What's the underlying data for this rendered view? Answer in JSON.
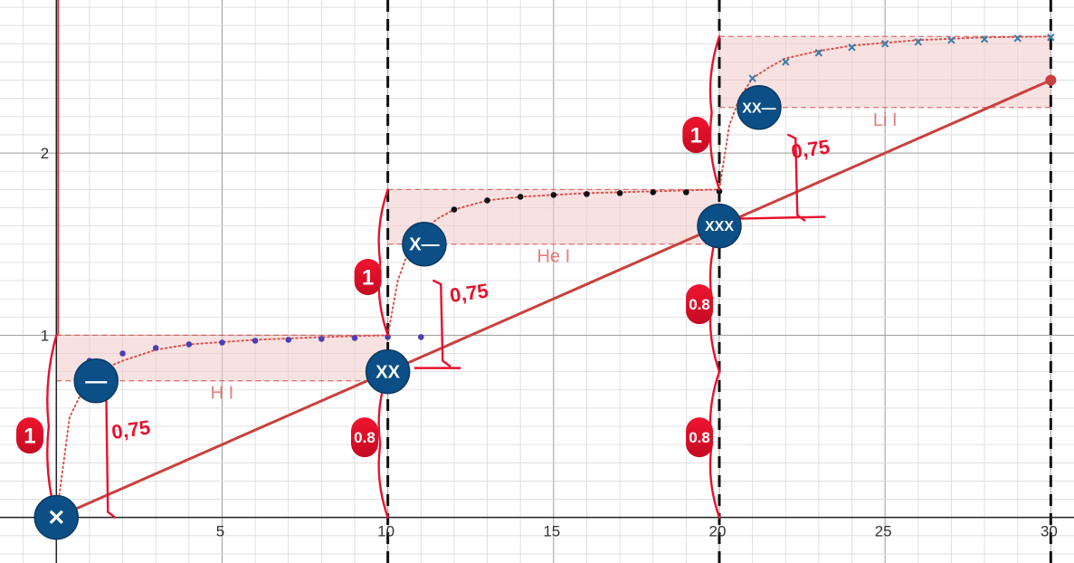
{
  "chart_data": {
    "type": "line",
    "xlim": [
      -1.7,
      30.7
    ],
    "ylim": [
      -0.25,
      2.84
    ],
    "grid": true,
    "x_ticks": [
      {
        "value": 0,
        "label": "0"
      },
      {
        "value": 5,
        "label": "5"
      },
      {
        "value": 10,
        "label": "10"
      },
      {
        "value": 15,
        "label": "15"
      },
      {
        "value": 20,
        "label": "20"
      },
      {
        "value": 25,
        "label": "25"
      },
      {
        "value": 30,
        "label": "30"
      }
    ],
    "y_ticks": [
      {
        "value": 1,
        "label": "1"
      },
      {
        "value": 2,
        "label": "2"
      }
    ],
    "dashed_vlines": [
      10,
      20,
      30
    ],
    "diagonal_line": {
      "x": [
        0,
        30
      ],
      "y": [
        0,
        2.4
      ],
      "color": "#c9403d"
    },
    "regions": [
      {
        "label": "H I",
        "x": [
          0,
          10
        ],
        "y_low": 0.75,
        "y_high": 1.0
      },
      {
        "label": "He I",
        "x": [
          10,
          20
        ],
        "y_low": 1.5,
        "y_high": 1.8
      },
      {
        "label": "Li I",
        "x": [
          20,
          30
        ],
        "y_low": 2.25,
        "y_high": 2.64
      }
    ],
    "series": [
      {
        "color": "#4a3fb5",
        "marker": "dot",
        "x": [
          1,
          2,
          3,
          4,
          5,
          6,
          7,
          8,
          9,
          10,
          11
        ],
        "y": [
          0.86,
          0.9,
          0.93,
          0.95,
          0.96,
          0.97,
          0.975,
          0.98,
          0.985,
          0.99,
          0.99
        ]
      },
      {
        "color": "#111111",
        "marker": "dot",
        "x": [
          11,
          12,
          13,
          14,
          15,
          16,
          17,
          18,
          19,
          20
        ],
        "y": [
          1.59,
          1.69,
          1.74,
          1.76,
          1.77,
          1.775,
          1.78,
          1.785,
          1.785,
          1.79
        ]
      },
      {
        "color": "#3a7ca5",
        "marker": "x",
        "x": [
          21,
          22,
          23,
          24,
          25,
          26,
          27,
          28,
          29,
          30
        ],
        "y": [
          2.41,
          2.5,
          2.55,
          2.58,
          2.6,
          2.61,
          2.62,
          2.625,
          2.63,
          2.635
        ]
      }
    ],
    "curves": [
      {
        "x": [
          0,
          0.4,
          0.8,
          1.2,
          1.6,
          2,
          3,
          4,
          6,
          8,
          10
        ],
        "y": [
          0,
          0.55,
          0.7,
          0.78,
          0.83,
          0.86,
          0.92,
          0.95,
          0.975,
          0.99,
          1.0
        ]
      },
      {
        "x": [
          10,
          10.3,
          10.6,
          11,
          11.5,
          12,
          13,
          14,
          16,
          18,
          20
        ],
        "y": [
          1.0,
          1.3,
          1.45,
          1.56,
          1.64,
          1.69,
          1.74,
          1.76,
          1.78,
          1.79,
          1.8
        ]
      },
      {
        "x": [
          20,
          20.3,
          20.6,
          21,
          21.5,
          22,
          23,
          24,
          26,
          28,
          30
        ],
        "y": [
          1.8,
          2.15,
          2.3,
          2.41,
          2.47,
          2.52,
          2.56,
          2.59,
          2.62,
          2.635,
          2.64
        ]
      }
    ],
    "endpoint": {
      "x": 30,
      "y": 2.4
    }
  },
  "annotations": {
    "circles": [
      {
        "text": "✕",
        "x": 0,
        "y": 0
      },
      {
        "text": "—",
        "x": 1.2,
        "y": 0.75
      },
      {
        "text": "XX",
        "x": 10,
        "y": 0.8
      },
      {
        "text": "X—",
        "x": 11.1,
        "y": 1.5
      },
      {
        "text": "XXX",
        "x": 20,
        "y": 1.6
      },
      {
        "text": "XX—",
        "x": 21.2,
        "y": 2.25
      }
    ],
    "pins": [
      {
        "text": "1",
        "x": -0.8,
        "y": 0.45,
        "h": 40,
        "size": 24
      },
      {
        "text": "1",
        "x": 9.4,
        "y": 1.32,
        "h": 40,
        "size": 24
      },
      {
        "text": "1",
        "x": 19.3,
        "y": 2.1,
        "h": 40,
        "size": 24
      },
      {
        "text": "0.8",
        "x": 9.3,
        "y": 0.44,
        "h": 44,
        "size": 17
      },
      {
        "text": "0.8",
        "x": 19.4,
        "y": 1.17,
        "h": 44,
        "size": 17
      },
      {
        "text": "0.8",
        "x": 19.4,
        "y": 0.44,
        "h": 44,
        "size": 17
      }
    ],
    "labels": [
      {
        "text": "0,75",
        "x": 1.7,
        "y": 0.43
      },
      {
        "text": "0,75",
        "x": 11.9,
        "y": 1.18
      },
      {
        "text": "0,75",
        "x": 22.2,
        "y": 1.97
      }
    ]
  }
}
